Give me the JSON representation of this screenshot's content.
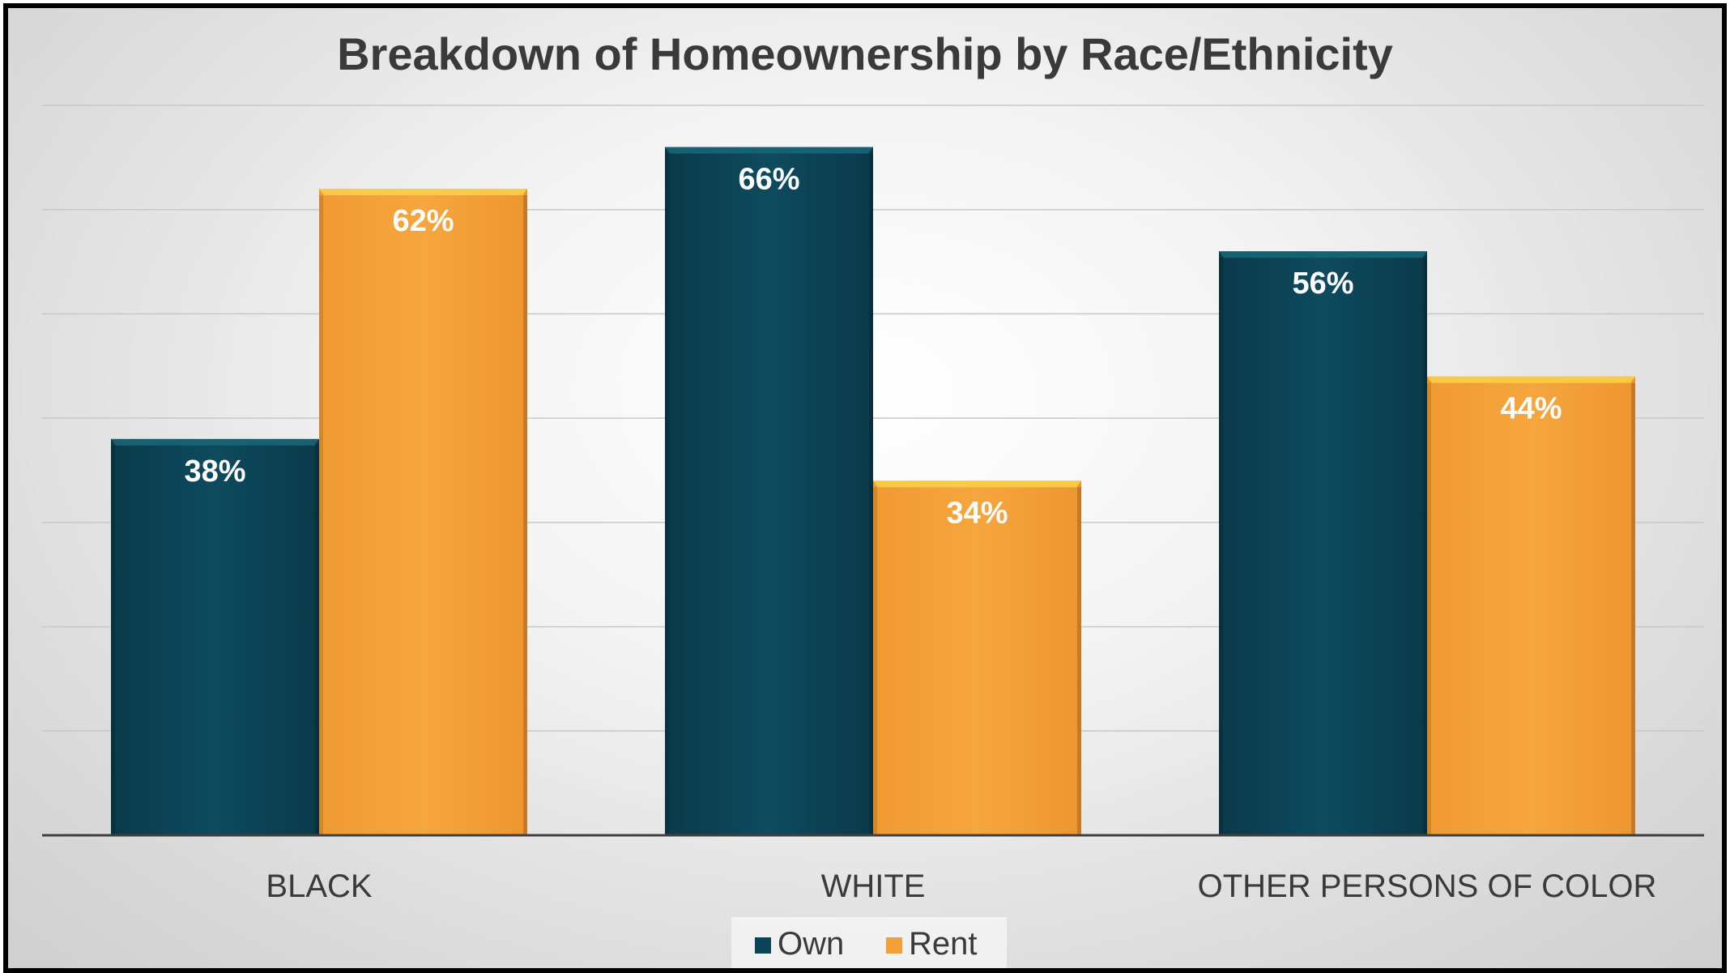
{
  "chart_data": {
    "type": "bar",
    "title": "Breakdown of Homeownership by Race/Ethnicity",
    "categories": [
      "BLACK",
      "WHITE",
      "OTHER PERSONS OF COLOR"
    ],
    "series": [
      {
        "name": "Own",
        "values": [
          38,
          66,
          56
        ],
        "labels": [
          "38%",
          "66%",
          "56%"
        ],
        "color": "#0b4456"
      },
      {
        "name": "Rent",
        "values": [
          62,
          34,
          44
        ],
        "labels": [
          "62%",
          "34%",
          "44%"
        ],
        "color": "#f4a03a"
      }
    ],
    "ylim": [
      0,
      70
    ],
    "grid": true,
    "legend_position": "bottom"
  }
}
